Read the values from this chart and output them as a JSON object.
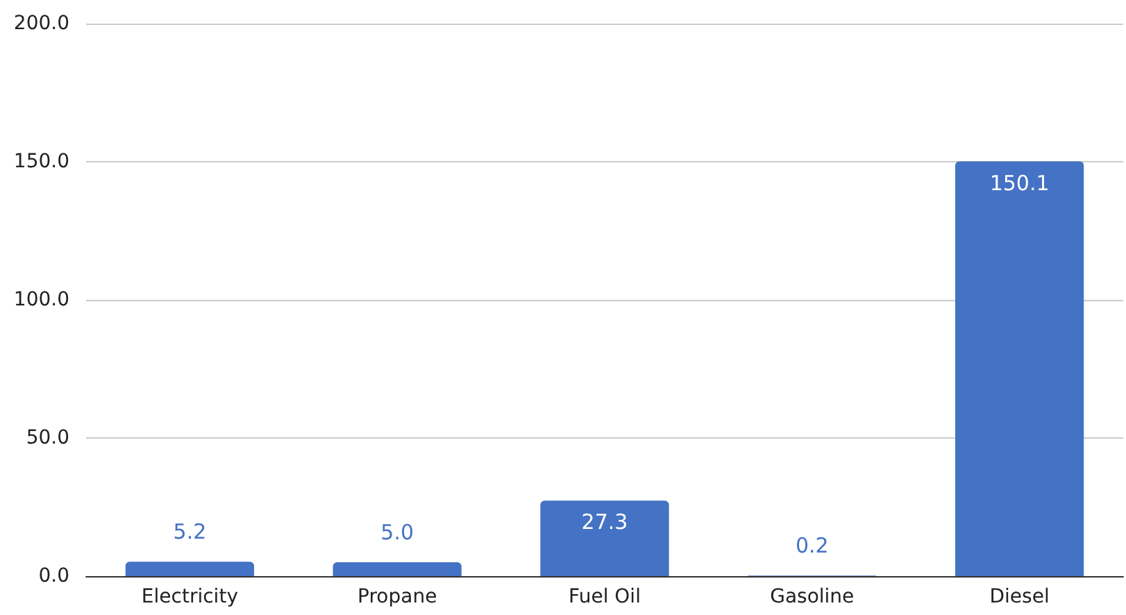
{
  "chart_data": {
    "type": "bar",
    "categories": [
      "Electricity",
      "Propane",
      "Fuel Oil",
      "Gasoline",
      "Diesel"
    ],
    "values": [
      5.2,
      5.0,
      27.3,
      0.2,
      150.1
    ],
    "value_labels": [
      "5.2",
      "5.0",
      "27.3",
      "0.2",
      "150.1"
    ],
    "color": "#4472c4",
    "ylim": [
      0,
      200
    ],
    "yticks": [
      {
        "value": 0,
        "label": "0.0"
      },
      {
        "value": 50,
        "label": "50.0"
      },
      {
        "value": 100,
        "label": "100.0"
      },
      {
        "value": 150,
        "label": "150.0"
      },
      {
        "value": 200,
        "label": "200.0"
      }
    ],
    "grid": true
  }
}
